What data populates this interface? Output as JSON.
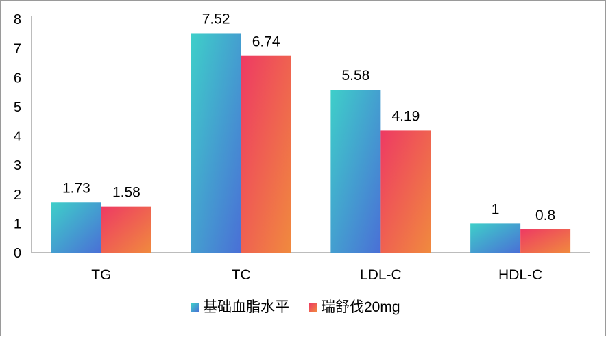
{
  "chart_data": {
    "type": "bar",
    "title": "",
    "xlabel": "",
    "ylabel": "",
    "ylim": [
      0,
      8
    ],
    "yticks": [
      "0",
      "1",
      "2",
      "3",
      "4",
      "5",
      "6",
      "7",
      "8"
    ],
    "categories": [
      "TG",
      "TC",
      "LDL-C",
      "HDL-C"
    ],
    "series": [
      {
        "name": "基础血脂水平",
        "values": [
          1.73,
          7.52,
          5.58,
          1
        ],
        "labels": [
          "1.73",
          "7.52",
          "5.58",
          "1"
        ],
        "color_top": "#3ecfc9",
        "color_bottom": "#4a6fd6"
      },
      {
        "name": "瑞舒伐20mg",
        "values": [
          1.58,
          6.74,
          4.19,
          0.8
        ],
        "labels": [
          "1.58",
          "6.74",
          "4.19",
          "0.8"
        ],
        "color_top": "#ee3a63",
        "color_bottom": "#f08a3e"
      }
    ],
    "grid": false,
    "legend": "bottom-center"
  }
}
